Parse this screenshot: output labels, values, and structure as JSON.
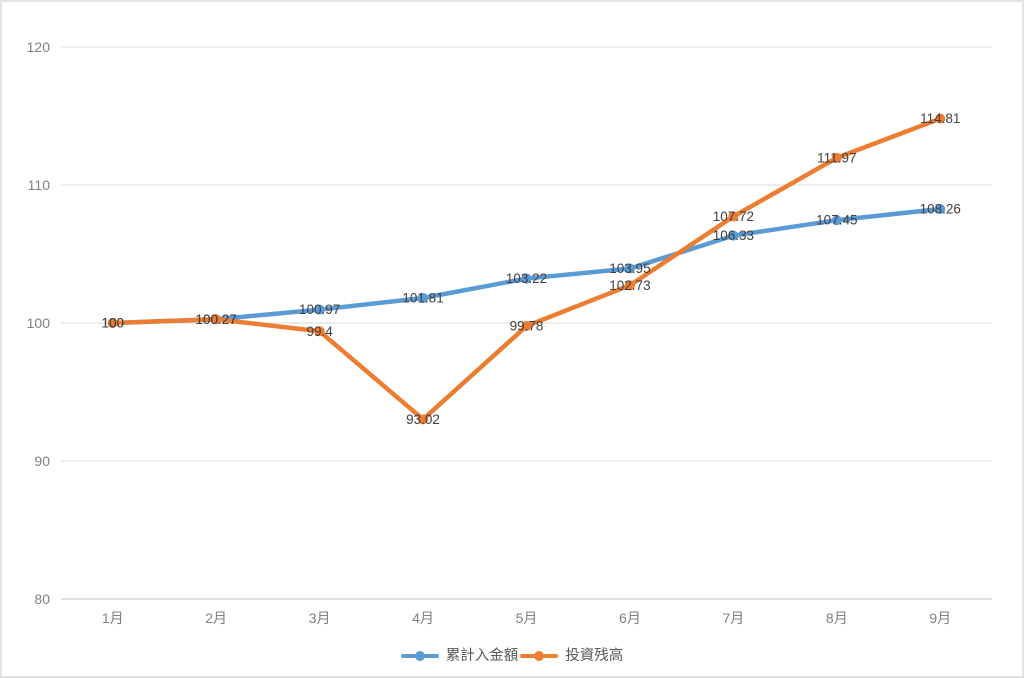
{
  "chart_data": {
    "type": "line",
    "title": "",
    "xlabel": "",
    "ylabel": "",
    "categories": [
      "1月",
      "2月",
      "3月",
      "4月",
      "5月",
      "6月",
      "7月",
      "8月",
      "9月"
    ],
    "series": [
      {
        "name": "累計入金額",
        "color": "#5B9BD5",
        "values": [
          100,
          100.27,
          100.97,
          101.81,
          103.22,
          103.95,
          106.33,
          107.45,
          108.26
        ],
        "labels": [
          "100",
          "100.27",
          "100.97",
          "101.81",
          "103.22",
          "103.95",
          "106.33",
          "107.45",
          "108.26"
        ]
      },
      {
        "name": "投資残高",
        "color": "#ED7D31",
        "values": [
          100,
          100.27,
          99.4,
          93.02,
          99.78,
          102.73,
          107.72,
          111.97,
          114.81
        ],
        "labels": [
          "100",
          "100.27",
          "99.4",
          "93.02",
          "99.78",
          "102.73",
          "107.72",
          "111.97",
          "114.81"
        ]
      }
    ],
    "y_ticks": [
      80,
      90,
      100,
      110,
      120
    ],
    "ylim": [
      80,
      120
    ],
    "grid": true,
    "data_labels": true,
    "legend_position": "bottom",
    "colors": {
      "gridline": "#D9D9D9",
      "axis_line": "#BFBFBF",
      "tick_label": "#7F7F7F",
      "data_label": "#404040",
      "legend_text": "#595959",
      "border": "#E2E2E2",
      "background": "#FFFFFF"
    }
  }
}
